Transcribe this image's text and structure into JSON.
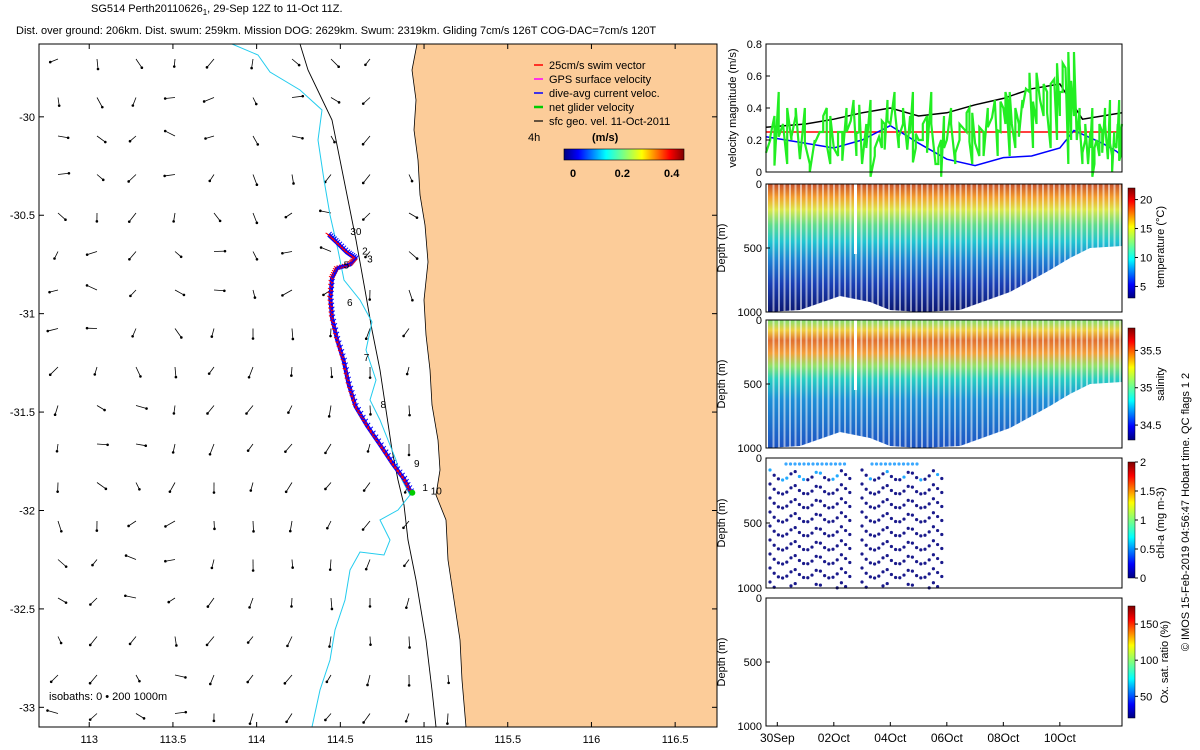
{
  "header": {
    "title": "SG514 Perth20110626",
    "title_sub": "1",
    "period": "29-Sep 12Z to 11-Oct 11Z.",
    "stats": "Dist. over ground: 206km. Dist. swum: 259km. Mission DOG: 2629km. Swum: 2319km. Gliding 7cm/s 126T COG-DAC=7cm/s 120T"
  },
  "chart_data": [
    {
      "type": "scatter",
      "name": "map",
      "x_range": [
        112.7,
        116.75
      ],
      "y_range": [
        -33.1,
        -29.63
      ],
      "xticks": [
        113,
        113.5,
        114,
        114.5,
        115,
        115.5,
        116,
        116.5
      ],
      "yticks": [
        -30,
        -30.5,
        -31,
        -31.5,
        -32,
        -32.5,
        -33
      ],
      "legend": [
        {
          "label": "25cm/s swim vector",
          "color": "#ff0000"
        },
        {
          "label": "GPS surface velocity",
          "color": "#ff00ff"
        },
        {
          "label": "dive-avg current veloc.",
          "color": "#0000ff"
        },
        {
          "label": "net glider velocity",
          "color": "#00cc00"
        },
        {
          "label": "sfc geo. vel. 11-Oct-2011",
          "color": "#000000"
        }
      ],
      "legend_placement": "top-right",
      "scale_label": "4h",
      "colorbar": {
        "label": "(m/s)",
        "ticks": [
          0,
          0.2,
          0.4
        ]
      },
      "isobath_label": "isobaths: 0 • 200 1000m",
      "track_lonlat": [
        [
          114.43,
          -30.6
        ],
        [
          114.48,
          -30.64
        ],
        [
          114.54,
          -30.69
        ],
        [
          114.59,
          -30.72
        ],
        [
          114.56,
          -30.75
        ],
        [
          114.48,
          -30.77
        ],
        [
          114.45,
          -30.82
        ],
        [
          114.44,
          -30.92
        ],
        [
          114.45,
          -31.02
        ],
        [
          114.48,
          -31.13
        ],
        [
          114.52,
          -31.24
        ],
        [
          114.55,
          -31.36
        ],
        [
          114.59,
          -31.47
        ],
        [
          114.66,
          -31.57
        ],
        [
          114.74,
          -31.67
        ],
        [
          114.81,
          -31.76
        ],
        [
          114.88,
          -31.84
        ],
        [
          114.93,
          -31.92
        ]
      ],
      "day_labels": [
        {
          "text": "30",
          "lon": 114.56,
          "lat": -30.6
        },
        {
          "text": "2",
          "lon": 114.63,
          "lat": -30.7
        },
        {
          "text": "3",
          "lon": 114.66,
          "lat": -30.74
        },
        {
          "text": "5",
          "lon": 114.52,
          "lat": -30.77
        },
        {
          "text": "6",
          "lon": 114.54,
          "lat": -30.96
        },
        {
          "text": "7",
          "lon": 114.64,
          "lat": -31.24
        },
        {
          "text": "8",
          "lon": 114.74,
          "lat": -31.48
        },
        {
          "text": "9",
          "lon": 114.94,
          "lat": -31.78
        },
        {
          "text": "1",
          "lon": 114.99,
          "lat": -31.9
        },
        {
          "text": "10",
          "lon": 115.04,
          "lat": -31.92
        }
      ]
    },
    {
      "type": "line",
      "name": "velocity",
      "ylabel": "velocity magnitude (m/s)",
      "ylim": [
        0,
        0.8
      ],
      "yticks": [
        0,
        0.2,
        0.4,
        0.6,
        0.8
      ],
      "xlim": [
        29.6,
        42.2
      ],
      "series": [
        {
          "name": "swim vector",
          "color": "#ff0000",
          "x": [
            29.6,
            42.2
          ],
          "values": [
            0.25,
            0.25
          ]
        },
        {
          "name": "surface geostrophic",
          "color": "#000000",
          "x": [
            29.6,
            31,
            32,
            33,
            34,
            35,
            36,
            37,
            38,
            39,
            40,
            40.8,
            41.5,
            42.2
          ],
          "values": [
            0.28,
            0.3,
            0.33,
            0.37,
            0.4,
            0.35,
            0.37,
            0.42,
            0.46,
            0.52,
            0.55,
            0.33,
            0.35,
            0.37
          ]
        },
        {
          "name": "dive-avg current",
          "color": "#0000ff",
          "x": [
            29.6,
            31,
            32,
            33,
            34,
            35,
            36,
            37,
            38,
            39,
            40,
            40.5,
            41,
            41.5,
            42,
            42.2
          ],
          "values": [
            0.22,
            0.18,
            0.15,
            0.2,
            0.29,
            0.18,
            0.08,
            0.04,
            0.09,
            0.1,
            0.15,
            0.26,
            0.22,
            0.18,
            0.13,
            0.1
          ]
        },
        {
          "name": "net glider velocity",
          "color": "#22ee22",
          "x": [
            29.6,
            30.2,
            30.8,
            31.5,
            32,
            32.6,
            33,
            33.6,
            34,
            34.6,
            35,
            35.6,
            36,
            36.6,
            37,
            37.6,
            38,
            38.3,
            38.8,
            39.3,
            39.8,
            40.2,
            40.6,
            41,
            41.3,
            41.7,
            42,
            42.2
          ],
          "values": [
            0.12,
            0.3,
            0.08,
            0.25,
            0.15,
            0.32,
            0.05,
            0.22,
            0.3,
            0.14,
            0.2,
            0.05,
            0.2,
            0.27,
            0.18,
            0.34,
            0.4,
            0.3,
            0.52,
            0.45,
            0.58,
            0.65,
            0.2,
            0.05,
            0.2,
            0.08,
            0.15,
            0.3
          ]
        }
      ]
    },
    {
      "type": "heatmap",
      "name": "temperature",
      "ylabel": "Depth (m)",
      "ylim": [
        1000,
        0
      ],
      "yticks": [
        0,
        500,
        1000
      ],
      "colorbar_label": "temperature (°C)",
      "colorbar_range": [
        3,
        22
      ],
      "colorbar_ticks": [
        5,
        10,
        15,
        20
      ]
    },
    {
      "type": "heatmap",
      "name": "salinity",
      "ylabel": "Depth (m)",
      "ylim": [
        1000,
        0
      ],
      "yticks": [
        0,
        500,
        1000
      ],
      "colorbar_label": "salinity",
      "colorbar_range": [
        34.3,
        35.8
      ],
      "colorbar_ticks": [
        34.5,
        35,
        35.5
      ]
    },
    {
      "type": "heatmap",
      "name": "chl-a",
      "ylabel": "Depth (m)",
      "ylim": [
        1000,
        0
      ],
      "yticks": [
        0,
        500,
        1000
      ],
      "colorbar_label": "chl-a (mg m-3)",
      "colorbar_range": [
        0,
        2
      ],
      "colorbar_ticks": [
        0,
        0.5,
        1,
        1.5,
        2
      ]
    },
    {
      "type": "heatmap",
      "name": "oxygen",
      "ylabel": "Depth (m)",
      "ylim": [
        1000,
        0
      ],
      "yticks": [
        0,
        500,
        1000
      ],
      "colorbar_label": "Ox. sat. ratio (%)",
      "colorbar_range": [
        20,
        175
      ],
      "colorbar_ticks": [
        50,
        100,
        150
      ],
      "xlabels": [
        "30Sep",
        "02Oct",
        "04Oct",
        "06Oct",
        "08Oct",
        "10Oct"
      ],
      "xtick_days": [
        30,
        32,
        34,
        36,
        38,
        40
      ]
    }
  ],
  "side_note": "© IMOS 15-Feb-2019 04:56:47 Hobart time. QC flags 1 2"
}
